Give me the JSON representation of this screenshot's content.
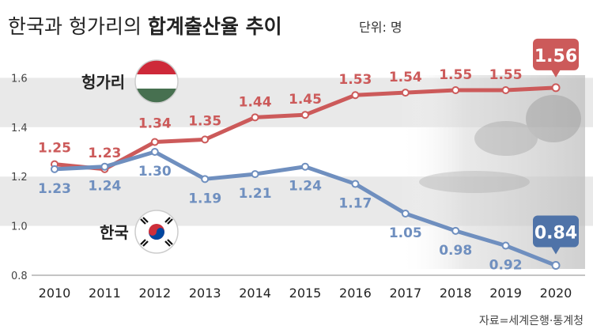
{
  "title": {
    "part1": "한국과 헝가리의 ",
    "part2": "합계출산율 추이",
    "unit": "단위: 명"
  },
  "source": "자료=세계은행·통계청",
  "colors": {
    "hungary": "#cc5a5a",
    "korea": "#6f8fbf",
    "korea_callout": "#4f73a8",
    "band": "#e9e9e9",
    "tick": "#444444"
  },
  "icons": {
    "hungary": "hungary-flag-icon",
    "korea": "korea-flag-icon"
  },
  "chart_data": {
    "type": "line",
    "x": [
      "2010",
      "2011",
      "2012",
      "2013",
      "2014",
      "2015",
      "2016",
      "2017",
      "2018",
      "2019",
      "2020"
    ],
    "ylim": [
      0.8,
      1.6
    ],
    "yticks": [
      "0.8",
      "1.0",
      "1.2",
      "1.4",
      "1.6"
    ],
    "grid": "alternating bands",
    "series": [
      {
        "name": "헝가리",
        "values": [
          1.25,
          1.23,
          1.34,
          1.35,
          1.44,
          1.45,
          1.53,
          1.54,
          1.55,
          1.55,
          1.56
        ],
        "labels": [
          "1.25",
          "1.23",
          "1.34",
          "1.35",
          "1.44",
          "1.45",
          "1.53",
          "1.54",
          "1.55",
          "1.55",
          "1.56"
        ]
      },
      {
        "name": "한국",
        "values": [
          1.23,
          1.24,
          1.3,
          1.19,
          1.21,
          1.24,
          1.17,
          1.05,
          0.98,
          0.92,
          0.84
        ],
        "labels": [
          "1.23",
          "1.24",
          "1.30",
          "1.19",
          "1.21",
          "1.24",
          "1.17",
          "1.05",
          "0.98",
          "0.92",
          "0.84"
        ]
      }
    ]
  }
}
